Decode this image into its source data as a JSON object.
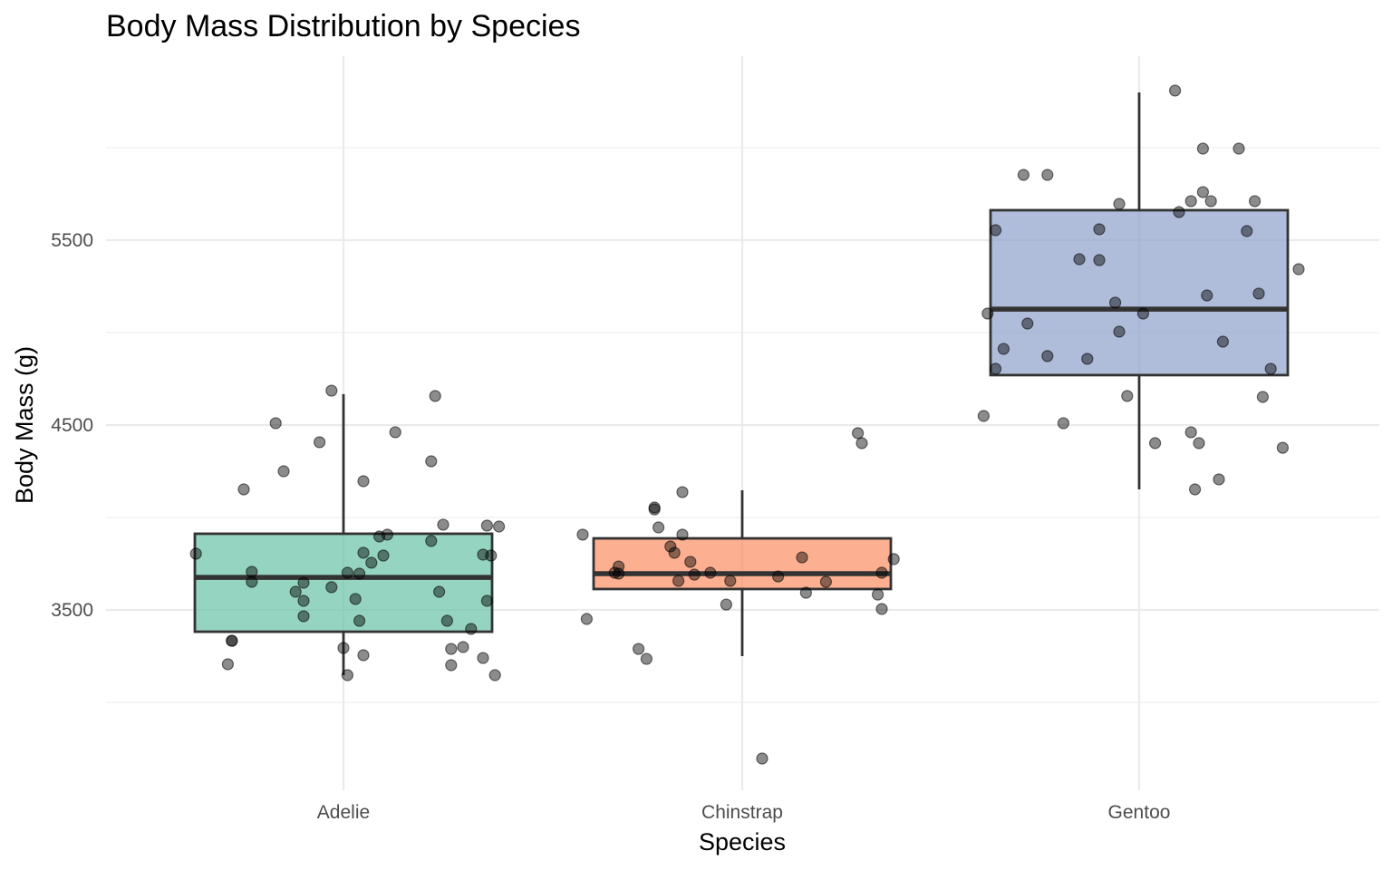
{
  "chart_data": {
    "type": "box",
    "title": "Body Mass Distribution by Species",
    "xlabel": "Species",
    "ylabel": "Body Mass (g)",
    "categories": [
      "Adelie",
      "Chinstrap",
      "Gentoo"
    ],
    "ylim": [
      2620,
      6450
    ],
    "y_major_ticks": [
      3500,
      4500,
      5500
    ],
    "y_minor_gridlines": [
      3000,
      4000,
      5000,
      6000
    ],
    "grid": true,
    "legend": "none",
    "box_alpha": 0.7,
    "point_style": {
      "color": "#000000",
      "alpha": 0.45,
      "jitter": true
    },
    "series": [
      {
        "name": "Adelie",
        "color": "#66C2A5",
        "box": {
          "whisker_low": 3147,
          "q1": 3382,
          "median": 3676,
          "q3": 3912,
          "whisker_high": 4667
        },
        "points": [
          {
            "v": 4686,
            "j": -0.03
          },
          {
            "v": 4657,
            "j": 0.23
          },
          {
            "v": 4510,
            "j": -0.17
          },
          {
            "v": 4461,
            "j": 0.13
          },
          {
            "v": 4407,
            "j": -0.06
          },
          {
            "v": 4250,
            "j": -0.15
          },
          {
            "v": 4304,
            "j": 0.22
          },
          {
            "v": 4196,
            "j": 0.05
          },
          {
            "v": 4152,
            "j": -0.25
          },
          {
            "v": 3961,
            "j": 0.25
          },
          {
            "v": 3956,
            "j": 0.36
          },
          {
            "v": 3951,
            "j": 0.39
          },
          {
            "v": 3907,
            "j": 0.11
          },
          {
            "v": 3897,
            "j": 0.09
          },
          {
            "v": 3873,
            "j": 0.22
          },
          {
            "v": 3804,
            "j": -0.37
          },
          {
            "v": 3809,
            "j": 0.05
          },
          {
            "v": 3794,
            "j": 0.1
          },
          {
            "v": 3799,
            "j": 0.35
          },
          {
            "v": 3794,
            "j": 0.37
          },
          {
            "v": 3755,
            "j": 0.07
          },
          {
            "v": 3706,
            "j": -0.23
          },
          {
            "v": 3701,
            "j": 0.01
          },
          {
            "v": 3696,
            "j": 0.04
          },
          {
            "v": 3652,
            "j": -0.23
          },
          {
            "v": 3647,
            "j": -0.1
          },
          {
            "v": 3623,
            "j": -0.03
          },
          {
            "v": 3598,
            "j": -0.12
          },
          {
            "v": 3598,
            "j": 0.24
          },
          {
            "v": 3549,
            "j": -0.1
          },
          {
            "v": 3559,
            "j": 0.03
          },
          {
            "v": 3549,
            "j": 0.36
          },
          {
            "v": 3466,
            "j": -0.1
          },
          {
            "v": 3441,
            "j": 0.04
          },
          {
            "v": 3441,
            "j": 0.26
          },
          {
            "v": 3397,
            "j": 0.32
          },
          {
            "v": 3333,
            "j": -0.28
          },
          {
            "v": 3333,
            "j": -0.28
          },
          {
            "v": 3294,
            "j": 0.0
          },
          {
            "v": 3289,
            "j": 0.27
          },
          {
            "v": 3299,
            "j": 0.3
          },
          {
            "v": 3255,
            "j": 0.05
          },
          {
            "v": 3240,
            "j": 0.35
          },
          {
            "v": 3206,
            "j": -0.29
          },
          {
            "v": 3201,
            "j": 0.27
          },
          {
            "v": 3147,
            "j": 0.01
          },
          {
            "v": 3147,
            "j": 0.38
          }
        ]
      },
      {
        "name": "Chinstrap",
        "color": "#FC8D62",
        "box": {
          "whisker_low": 3250,
          "q1": 3613,
          "median": 3696,
          "q3": 3887,
          "whisker_high": 4147
        },
        "points": [
          {
            "v": 4456,
            "j": 0.29
          },
          {
            "v": 4402,
            "j": 0.3
          },
          {
            "v": 4137,
            "j": -0.15
          },
          {
            "v": 4054,
            "j": -0.22
          },
          {
            "v": 4044,
            "j": -0.22
          },
          {
            "v": 3907,
            "j": -0.4
          },
          {
            "v": 3946,
            "j": -0.21
          },
          {
            "v": 3907,
            "j": -0.15
          },
          {
            "v": 3843,
            "j": -0.18
          },
          {
            "v": 3735,
            "j": -0.31
          },
          {
            "v": 3809,
            "j": -0.17
          },
          {
            "v": 3760,
            "j": -0.13
          },
          {
            "v": 3784,
            "j": 0.15
          },
          {
            "v": 3775,
            "j": 0.38
          },
          {
            "v": 3701,
            "j": -0.32
          },
          {
            "v": 3696,
            "j": -0.31
          },
          {
            "v": 3691,
            "j": -0.12
          },
          {
            "v": 3701,
            "j": -0.08
          },
          {
            "v": 3681,
            "j": 0.09
          },
          {
            "v": 3701,
            "j": 0.35
          },
          {
            "v": 3657,
            "j": -0.16
          },
          {
            "v": 3657,
            "j": -0.03
          },
          {
            "v": 3652,
            "j": 0.21
          },
          {
            "v": 3593,
            "j": 0.16
          },
          {
            "v": 3583,
            "j": 0.34
          },
          {
            "v": 3529,
            "j": -0.04
          },
          {
            "v": 3505,
            "j": 0.35
          },
          {
            "v": 3451,
            "j": -0.39
          },
          {
            "v": 3289,
            "j": -0.26
          },
          {
            "v": 3235,
            "j": -0.24
          },
          {
            "v": 2696,
            "j": 0.05
          }
        ]
      },
      {
        "name": "Gentoo",
        "color": "#8DA0CB",
        "box": {
          "whisker_low": 4152,
          "q1": 4770,
          "median": 5127,
          "q3": 5662,
          "whisker_high": 6299
        },
        "points": [
          {
            "v": 6309,
            "j": 0.09
          },
          {
            "v": 5995,
            "j": 0.16
          },
          {
            "v": 5995,
            "j": 0.25
          },
          {
            "v": 5853,
            "j": -0.29
          },
          {
            "v": 5853,
            "j": -0.23
          },
          {
            "v": 5696,
            "j": -0.05
          },
          {
            "v": 5760,
            "j": 0.16
          },
          {
            "v": 5711,
            "j": 0.13
          },
          {
            "v": 5711,
            "j": 0.18
          },
          {
            "v": 5711,
            "j": 0.29
          },
          {
            "v": 5652,
            "j": 0.1
          },
          {
            "v": 5554,
            "j": -0.36
          },
          {
            "v": 5559,
            "j": -0.1
          },
          {
            "v": 5549,
            "j": 0.27
          },
          {
            "v": 5397,
            "j": -0.15
          },
          {
            "v": 5392,
            "j": -0.1
          },
          {
            "v": 5343,
            "j": 0.4
          },
          {
            "v": 5162,
            "j": -0.06
          },
          {
            "v": 5201,
            "j": 0.17
          },
          {
            "v": 5211,
            "j": 0.3
          },
          {
            "v": 5103,
            "j": 0.01
          },
          {
            "v": 5103,
            "j": -0.38
          },
          {
            "v": 5049,
            "j": -0.28
          },
          {
            "v": 5005,
            "j": -0.05
          },
          {
            "v": 4951,
            "j": 0.21
          },
          {
            "v": 4912,
            "j": -0.34
          },
          {
            "v": 4873,
            "j": -0.23
          },
          {
            "v": 4858,
            "j": -0.13
          },
          {
            "v": 4804,
            "j": -0.36
          },
          {
            "v": 4804,
            "j": 0.33
          },
          {
            "v": 4657,
            "j": -0.03
          },
          {
            "v": 4652,
            "j": 0.31
          },
          {
            "v": 4549,
            "j": -0.39
          },
          {
            "v": 4510,
            "j": -0.19
          },
          {
            "v": 4461,
            "j": 0.13
          },
          {
            "v": 4402,
            "j": 0.04
          },
          {
            "v": 4402,
            "j": 0.15
          },
          {
            "v": 4377,
            "j": 0.36
          },
          {
            "v": 4206,
            "j": 0.2
          },
          {
            "v": 4152,
            "j": 0.14
          }
        ]
      }
    ]
  }
}
